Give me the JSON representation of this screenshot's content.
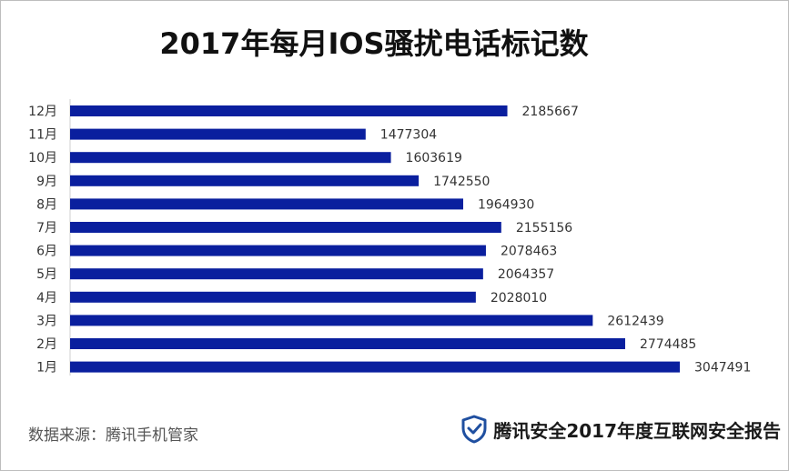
{
  "chart_data": {
    "type": "bar",
    "orientation": "horizontal",
    "title": "2017年每月IOS骚扰电话标记数",
    "categories": [
      "12月",
      "11月",
      "10月",
      "9月",
      "8月",
      "7月",
      "6月",
      "5月",
      "4月",
      "3月",
      "2月",
      "1月"
    ],
    "values": [
      2185667,
      1477304,
      1603619,
      1742550,
      1964930,
      2155156,
      2078463,
      2064357,
      2028010,
      2612439,
      2774485,
      3047491
    ],
    "data_labels": [
      "2185667",
      "1477304",
      "1603619",
      "1742550",
      "1964930",
      "2155156",
      "2078463",
      "2064357",
      "2028010",
      "2612439",
      "2774485",
      "3047491"
    ],
    "xlim": [
      0,
      3047491
    ],
    "grid": false,
    "legend": "none",
    "bar_color": "#0a1f9e"
  },
  "source_text": "数据来源：腾讯手机管家",
  "footer": {
    "text": "腾讯安全2017年度互联网安全报告",
    "icon": "shield-check-icon",
    "icon_color": "#1f4fa0"
  }
}
